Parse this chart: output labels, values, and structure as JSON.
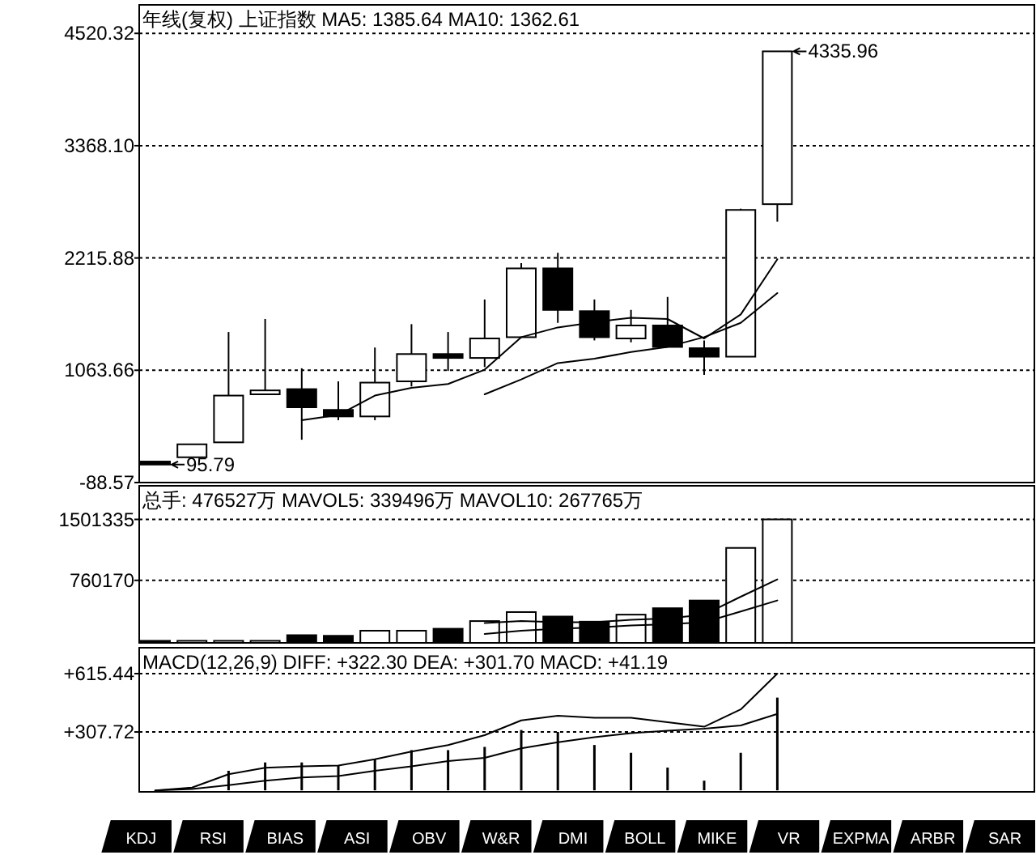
{
  "chart_data": [
    {
      "type": "candlestick",
      "title": "年线(复权)  上证指数 MA5: 1385.64 MA10: 1362.61",
      "categories": [
        null,
        null,
        null,
        null,
        null,
        null,
        null,
        null,
        null,
        null,
        null,
        null,
        null,
        null,
        null,
        null,
        null,
        null
      ],
      "ohlc": [
        [
          127,
          127,
          95.79,
          96
        ],
        [
          171,
          304,
          171,
          304
        ],
        [
          324,
          1456,
          324,
          804
        ],
        [
          817,
          1590,
          817,
          857
        ],
        [
          870,
          1084,
          351,
          684
        ],
        [
          657,
          950,
          551,
          590
        ],
        [
          590,
          1297,
          551,
          937
        ],
        [
          950,
          1537,
          897,
          1230
        ],
        [
          1230,
          1456,
          1057,
          1190
        ],
        [
          1190,
          1790,
          1097,
          1390
        ],
        [
          1403,
          2163,
          1403,
          2109
        ],
        [
          2109,
          2269,
          1550,
          1683
        ],
        [
          1670,
          1790,
          1370,
          1403
        ],
        [
          1390,
          1683,
          1350,
          1523
        ],
        [
          1523,
          1816,
          1303,
          1303
        ],
        [
          1290,
          1370,
          1017,
          1203
        ],
        [
          1203,
          2722,
          1203,
          2709
        ],
        [
          2768,
          4335.96,
          2589,
          4335.96
        ]
      ],
      "colors": [
        "#000000",
        "#ffffff",
        "#ffffff",
        "#ffffff",
        "#000000",
        "#000000",
        "#ffffff",
        "#ffffff",
        "#000000",
        "#ffffff",
        "#ffffff",
        "#000000",
        "#000000",
        "#ffffff",
        "#000000",
        "#000000",
        "#ffffff",
        "#ffffff"
      ],
      "series": [
        {
          "type": "line",
          "color": "#000000",
          "values": [
            null,
            null,
            null,
            null,
            551,
            604,
            804,
            884,
            924,
            1070,
            1403,
            1503,
            1557,
            1603,
            1590,
            1390,
            1636,
            2203
          ]
        },
        {
          "type": "line",
          "color": "#000000",
          "values": [
            null,
            null,
            null,
            null,
            null,
            null,
            null,
            null,
            null,
            817,
            970,
            1137,
            1183,
            1250,
            1303,
            1403,
            1550,
            1856
          ]
        }
      ],
      "ylim": [
        -88.57,
        4813
      ],
      "yticks": [
        -88.57,
        1063.66,
        2215.88,
        {
          "value": 3368.1,
          "label": "3368.10"
        },
        4520.32
      ],
      "grid": "y",
      "annotations": [
        "4335.96",
        "95.79"
      ]
    },
    {
      "type": "bar",
      "title": "总手: 476527万 MAVOL5: 339496万 MAVOL10: 267765万",
      "categories": [
        null,
        null,
        null,
        null,
        null,
        null,
        null,
        null,
        null,
        null,
        null,
        null,
        null,
        null,
        null,
        null,
        null,
        null
      ],
      "values": [
        25000,
        25000,
        25000,
        25000,
        93600,
        85800,
        148000,
        148000,
        171600,
        265000,
        374500,
        320000,
        257500,
        343300,
        421300,
        515000,
        1154600,
        1501335
      ],
      "colors": [
        "#000000",
        "#ffffff",
        "#ffffff",
        "#ffffff",
        "#000000",
        "#000000",
        "#ffffff",
        "#ffffff",
        "#000000",
        "#ffffff",
        "#ffffff",
        "#000000",
        "#000000",
        "#ffffff",
        "#000000",
        "#000000",
        "#ffffff",
        "#ffffff"
      ],
      "series": [
        {
          "type": "line",
          "color": "#000000",
          "values": [
            null,
            null,
            null,
            null,
            null,
            null,
            null,
            null,
            null,
            241800,
            265000,
            249600,
            249600,
            280900,
            296500,
            343300,
            561700,
            772400
          ]
        },
        {
          "type": "line",
          "color": "#000000",
          "values": [
            null,
            null,
            null,
            null,
            null,
            null,
            null,
            null,
            null,
            109200,
            148200,
            171600,
            187200,
            210600,
            226200,
            249600,
            382300,
            515000
          ]
        }
      ],
      "ylim": [
        0,
        1910000
      ],
      "yticks": [
        760170,
        1501335
      ],
      "grid": "y"
    },
    {
      "type": "line",
      "title": "MACD(12,26,9) DIFF: +322.30 DEA: +301.70 MACD: +41.19",
      "categories": [
        null,
        null,
        null,
        null,
        null,
        null,
        null,
        null,
        null,
        null,
        null,
        null,
        null,
        null,
        null,
        null,
        null,
        null
      ],
      "series": [
        {
          "type": "bar",
          "color": "#000000",
          "values": [
            0,
            null,
            103,
            147,
            147,
            130,
            164,
            212,
            212,
            229,
            318,
            308,
            239,
            198,
            120,
            51,
            198,
            489
          ]
        },
        {
          "type": "line",
          "color": "#000000",
          "values": [
            0,
            14,
            85,
            119,
            126,
            130,
            164,
            205,
            239,
            291,
            369,
            393,
            383,
            383,
            359,
            335,
            427,
            615
          ]
        },
        {
          "type": "line",
          "color": "#000000",
          "values": [
            0,
            7,
            27,
            51,
            68,
            75,
            103,
            126,
            154,
            171,
            222,
            253,
            280,
            301,
            315,
            325,
            342,
            403
          ]
        }
      ],
      "ylim": [
        -8,
        752
      ],
      "yticks": [
        {
          "value": 307.72,
          "label": "+307.72"
        },
        {
          "value": 615.44,
          "label": "+615.44"
        }
      ],
      "grid": "y"
    },
    {
      "type": "other",
      "annotations": [
        "KDJ",
        "RSI",
        "BIAS",
        "ASI",
        "OBV",
        "W&R",
        "DMI",
        "BOLL",
        "MIKE",
        "VR",
        "EXPMA",
        "ARBR",
        "SAR"
      ]
    }
  ]
}
